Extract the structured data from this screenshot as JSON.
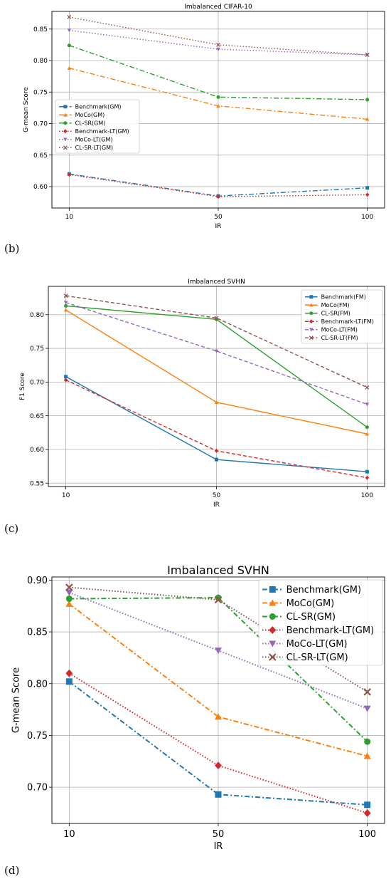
{
  "panels": [
    {
      "label": "(b)"
    },
    {
      "label": "(c)"
    },
    {
      "label": "(d)"
    }
  ],
  "chart_data": [
    {
      "type": "line",
      "title": "Imbalanced CIFAR-10",
      "xlabel": "IR",
      "ylabel": "G-mean Score",
      "categories": [
        "10",
        "50",
        "100"
      ],
      "ylim": [
        0.566,
        0.878
      ],
      "yticks": [
        0.6,
        0.65,
        0.7,
        0.75,
        0.8,
        0.85
      ],
      "grid": true,
      "legend_position": "center-left",
      "series": [
        {
          "name": "Benchmark(GM)",
          "values": [
            0.62,
            0.585,
            0.598
          ],
          "color": "#1f77b4",
          "marker": "square",
          "dash": "dashdot"
        },
        {
          "name": "MoCo(GM)",
          "values": [
            0.788,
            0.728,
            0.707
          ],
          "color": "#ff7f0e",
          "marker": "triangle-up",
          "dash": "dashdot"
        },
        {
          "name": "CL-SR(GM)",
          "values": [
            0.824,
            0.742,
            0.738
          ],
          "color": "#2ca02c",
          "marker": "circle",
          "dash": "dashdot"
        },
        {
          "name": "Benchmark-LT(GM)",
          "values": [
            0.619,
            0.584,
            0.587
          ],
          "color": "#d62728",
          "marker": "diamond",
          "dash": "dotted"
        },
        {
          "name": "MoCo-LT(GM)",
          "values": [
            0.848,
            0.818,
            0.809
          ],
          "color": "#9467bd",
          "marker": "triangle-down",
          "dash": "dotted"
        },
        {
          "name": "CL-SR-LT(GM)",
          "values": [
            0.869,
            0.825,
            0.809
          ],
          "color": "#8c564b",
          "marker": "x",
          "dash": "dotted"
        }
      ]
    },
    {
      "type": "line",
      "title": "Imbalanced SVHN",
      "xlabel": "IR",
      "ylabel": "F1 Score",
      "categories": [
        "10",
        "50",
        "100"
      ],
      "ylim": [
        0.545,
        0.842
      ],
      "yticks": [
        0.55,
        0.6,
        0.65,
        0.7,
        0.75,
        0.8
      ],
      "grid": true,
      "legend_position": "top-right",
      "series": [
        {
          "name": "Benchmark(FM)",
          "values": [
            0.708,
            0.585,
            0.567
          ],
          "color": "#1f77b4",
          "marker": "square",
          "dash": "solid"
        },
        {
          "name": "MoCo(FM)",
          "values": [
            0.807,
            0.67,
            0.623
          ],
          "color": "#ff7f0e",
          "marker": "triangle-up",
          "dash": "solid"
        },
        {
          "name": "CL-SR(FM)",
          "values": [
            0.813,
            0.793,
            0.633
          ],
          "color": "#2ca02c",
          "marker": "circle",
          "dash": "solid"
        },
        {
          "name": "Benchmark-LT(FM)",
          "values": [
            0.703,
            0.598,
            0.558
          ],
          "color": "#d62728",
          "marker": "diamond",
          "dash": "dashed"
        },
        {
          "name": "MoCo-LT(FM)",
          "values": [
            0.818,
            0.746,
            0.667
          ],
          "color": "#9467bd",
          "marker": "triangle-down",
          "dash": "dashed"
        },
        {
          "name": "CL-SR-LT(FM)",
          "values": [
            0.828,
            0.795,
            0.692
          ],
          "color": "#8c564b",
          "marker": "x",
          "dash": "dashed"
        }
      ]
    },
    {
      "type": "line",
      "title": "Imbalanced SVHN",
      "xlabel": "IR",
      "ylabel": "G-mean Score",
      "categories": [
        "10",
        "50",
        "100"
      ],
      "ylim": [
        0.665,
        0.903
      ],
      "yticks": [
        0.7,
        0.75,
        0.8,
        0.85,
        0.9
      ],
      "grid": true,
      "legend_position": "top-right",
      "series": [
        {
          "name": "Benchmark(GM)",
          "values": [
            0.802,
            0.693,
            0.683
          ],
          "color": "#1f77b4",
          "marker": "square",
          "dash": "dashdot"
        },
        {
          "name": "MoCo(GM)",
          "values": [
            0.877,
            0.768,
            0.73
          ],
          "color": "#ff7f0e",
          "marker": "triangle-up",
          "dash": "dashdot"
        },
        {
          "name": "CL-SR(GM)",
          "values": [
            0.882,
            0.883,
            0.744
          ],
          "color": "#2ca02c",
          "marker": "circle",
          "dash": "dashdot"
        },
        {
          "name": "Benchmark-LT(GM)",
          "values": [
            0.81,
            0.721,
            0.675
          ],
          "color": "#d62728",
          "marker": "diamond",
          "dash": "dotted"
        },
        {
          "name": "MoCo-LT(GM)",
          "values": [
            0.888,
            0.832,
            0.776
          ],
          "color": "#9467bd",
          "marker": "triangle-down",
          "dash": "dotted"
        },
        {
          "name": "CL-SR-LT(GM)",
          "values": [
            0.893,
            0.881,
            0.792
          ],
          "color": "#8c564b",
          "marker": "x",
          "dash": "dotted"
        }
      ]
    }
  ]
}
